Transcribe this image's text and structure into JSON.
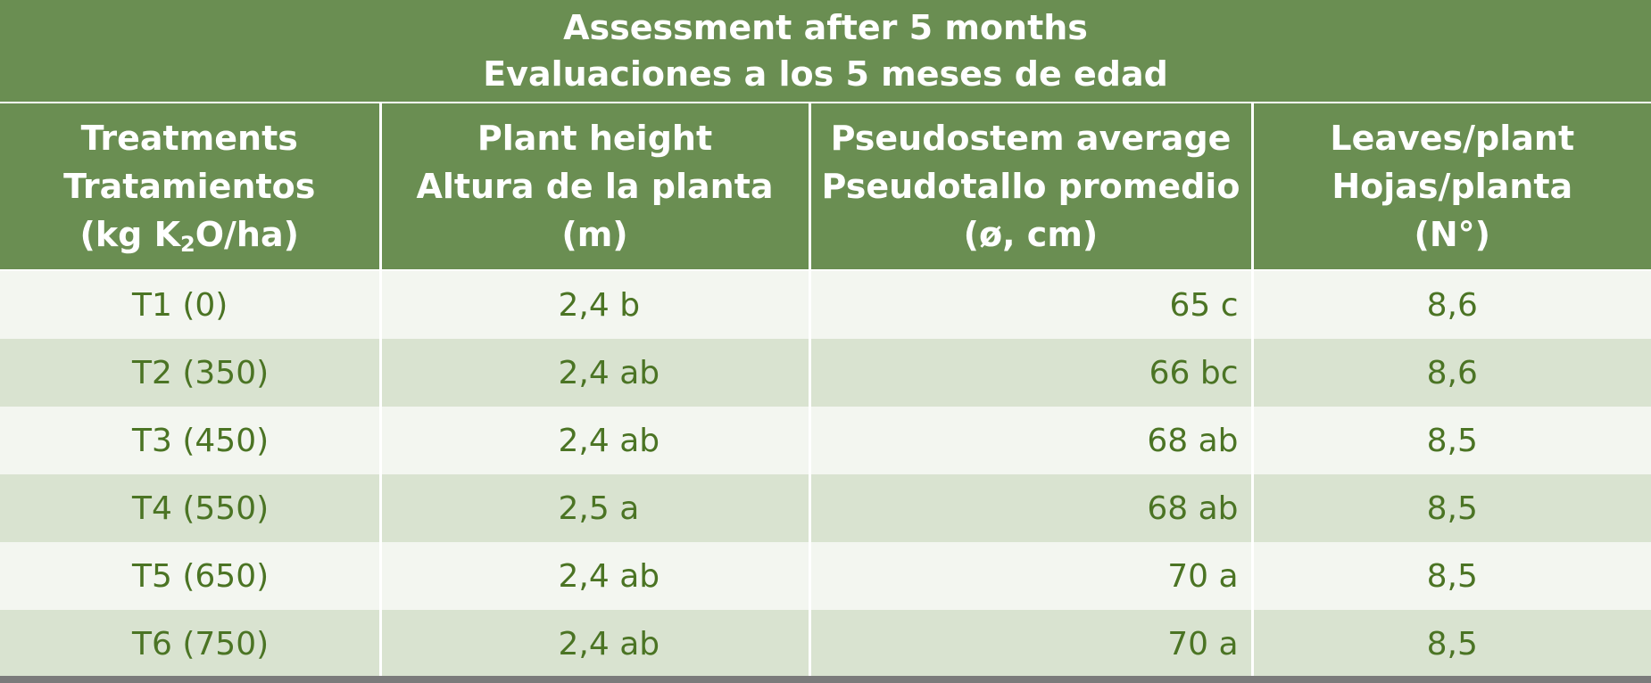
{
  "table": {
    "title_line1": "Assessment after 5 months",
    "title_line2": "Evaluaciones a los 5 meses de edad",
    "headers": [
      {
        "line1": "Treatments",
        "line2": "Tratamientos",
        "line3_pre": "(kg K",
        "line3_sub": "2",
        "line3_post": "O/ha)"
      },
      {
        "line1": "Plant height",
        "line2": "Altura de la planta",
        "line3": "(m)"
      },
      {
        "line1": "Pseudostem average",
        "line2": "Pseudotallo promedio",
        "line3": "(ø, cm)"
      },
      {
        "line1": "Leaves/plant",
        "line2": "Hojas/planta",
        "line3": "(N°)"
      }
    ],
    "rows": [
      {
        "treatment": "T1 (0)",
        "height": "2,4 b",
        "pseudostem": "65 c",
        "leaves": "8,6"
      },
      {
        "treatment": "T2 (350)",
        "height": "2,4 ab",
        "pseudostem": "66 bc",
        "leaves": "8,6"
      },
      {
        "treatment": "T3 (450)",
        "height": "2,4 ab",
        "pseudostem": "68 ab",
        "leaves": "8,5"
      },
      {
        "treatment": "T4 (550)",
        "height": "2,5 a",
        "pseudostem": "68 ab",
        "leaves": "8,5"
      },
      {
        "treatment": "T5 (650)",
        "height": "2,4 ab",
        "pseudostem": "70 a",
        "leaves": "8,5"
      },
      {
        "treatment": "T6 (750)",
        "height": "2,4 ab",
        "pseudostem": "70 a",
        "leaves": "8,5"
      }
    ]
  },
  "colors": {
    "header_bg": "#6a8e52",
    "row_light": "#f3f6f0",
    "row_dark": "#d9e3d0",
    "cell_text": "#4b7424"
  }
}
